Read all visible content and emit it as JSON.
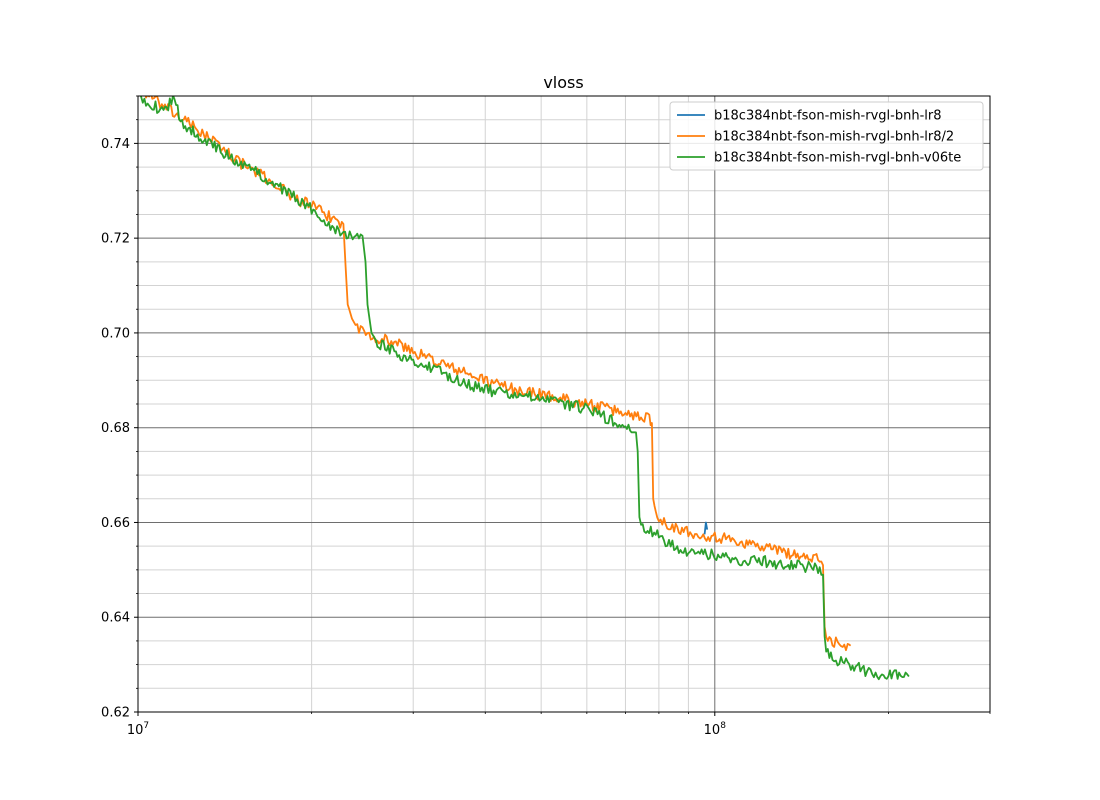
{
  "chart_data": {
    "type": "line",
    "title": "vloss",
    "xlabel": "",
    "ylabel": "",
    "xscale": "log",
    "xlim": [
      10000000,
      300000000
    ],
    "ylim": [
      0.62,
      0.75
    ],
    "grid": "major and minor",
    "legend_position": "top-right",
    "x_tick_labels": [
      {
        "value": 10000000,
        "base": "10",
        "exp": "7"
      },
      {
        "value": 100000000,
        "base": "10",
        "exp": "8"
      }
    ],
    "y_tick_labels": [
      {
        "value": 0.62,
        "label": "0.62"
      },
      {
        "value": 0.64,
        "label": "0.64"
      },
      {
        "value": 0.66,
        "label": "0.66"
      },
      {
        "value": 0.68,
        "label": "0.68"
      },
      {
        "value": 0.7,
        "label": "0.70"
      },
      {
        "value": 0.72,
        "label": "0.72"
      },
      {
        "value": 0.74,
        "label": "0.74"
      }
    ],
    "series": [
      {
        "name": "b18c384nbt-fson-mish-rvgl-bnh-lr8",
        "color": "#1f77b4",
        "points": [
          [
            96000000,
            0.6575
          ],
          [
            96500000,
            0.66
          ],
          [
            97000000,
            0.6585
          ]
        ]
      },
      {
        "name": "b18c384nbt-fson-mish-rvgl-bnh-lr8/2",
        "color": "#ff7f0e",
        "points": [
          [
            10000000,
            0.752
          ],
          [
            11000000,
            0.748
          ],
          [
            12000000,
            0.745
          ],
          [
            13000000,
            0.742
          ],
          [
            14000000,
            0.739
          ],
          [
            15000000,
            0.736
          ],
          [
            16000000,
            0.734
          ],
          [
            17000000,
            0.732
          ],
          [
            18000000,
            0.73
          ],
          [
            19000000,
            0.728
          ],
          [
            20000000,
            0.727
          ],
          [
            21000000,
            0.725
          ],
          [
            22000000,
            0.724
          ],
          [
            22700000,
            0.723
          ],
          [
            22900000,
            0.714
          ],
          [
            23100000,
            0.706
          ],
          [
            23500000,
            0.703
          ],
          [
            24000000,
            0.701
          ],
          [
            25000000,
            0.7
          ],
          [
            26000000,
            0.699
          ],
          [
            28000000,
            0.698
          ],
          [
            30000000,
            0.696
          ],
          [
            33000000,
            0.694
          ],
          [
            36000000,
            0.692
          ],
          [
            40000000,
            0.69
          ],
          [
            45000000,
            0.688
          ],
          [
            50000000,
            0.687
          ],
          [
            55000000,
            0.686
          ],
          [
            60000000,
            0.685
          ],
          [
            65000000,
            0.684
          ],
          [
            70000000,
            0.683
          ],
          [
            74000000,
            0.6825
          ],
          [
            77000000,
            0.682
          ],
          [
            77800000,
            0.681
          ],
          [
            78200000,
            0.665
          ],
          [
            79000000,
            0.662
          ],
          [
            80000000,
            0.661
          ],
          [
            85000000,
            0.659
          ],
          [
            90000000,
            0.658
          ],
          [
            100000000,
            0.657
          ],
          [
            110000000,
            0.656
          ],
          [
            120000000,
            0.655
          ],
          [
            130000000,
            0.654
          ],
          [
            140000000,
            0.653
          ],
          [
            152000000,
            0.652
          ],
          [
            154000000,
            0.651
          ],
          [
            155000000,
            0.638
          ],
          [
            156000000,
            0.636
          ],
          [
            160000000,
            0.635
          ],
          [
            170000000,
            0.634
          ],
          [
            172000000,
            0.634
          ]
        ]
      },
      {
        "name": "b18c384nbt-fson-mish-rvgl-bnh-v06te",
        "color": "#2ca02c",
        "points": [
          [
            10000000,
            0.75
          ],
          [
            11000000,
            0.747
          ],
          [
            11500000,
            0.749
          ],
          [
            12000000,
            0.744
          ],
          [
            13000000,
            0.741
          ],
          [
            14000000,
            0.738
          ],
          [
            15000000,
            0.736
          ],
          [
            16000000,
            0.734
          ],
          [
            17000000,
            0.732
          ],
          [
            18000000,
            0.73
          ],
          [
            19000000,
            0.728
          ],
          [
            20000000,
            0.726
          ],
          [
            21000000,
            0.724
          ],
          [
            22000000,
            0.722
          ],
          [
            23000000,
            0.721
          ],
          [
            24000000,
            0.72
          ],
          [
            24500000,
            0.7205
          ],
          [
            24800000,
            0.715
          ],
          [
            25000000,
            0.706
          ],
          [
            25400000,
            0.7
          ],
          [
            26000000,
            0.698
          ],
          [
            28000000,
            0.696
          ],
          [
            30000000,
            0.694
          ],
          [
            33000000,
            0.692
          ],
          [
            36000000,
            0.69
          ],
          [
            40000000,
            0.688
          ],
          [
            45000000,
            0.687
          ],
          [
            50000000,
            0.686
          ],
          [
            55000000,
            0.685
          ],
          [
            60000000,
            0.684
          ],
          [
            65000000,
            0.682
          ],
          [
            70000000,
            0.68
          ],
          [
            73000000,
            0.679
          ],
          [
            73500000,
            0.675
          ],
          [
            74000000,
            0.66
          ],
          [
            75000000,
            0.659
          ],
          [
            80000000,
            0.657
          ],
          [
            85000000,
            0.655
          ],
          [
            90000000,
            0.654
          ],
          [
            100000000,
            0.653
          ],
          [
            110000000,
            0.652
          ],
          [
            120000000,
            0.652
          ],
          [
            130000000,
            0.651
          ],
          [
            140000000,
            0.651
          ],
          [
            152000000,
            0.65
          ],
          [
            154000000,
            0.649
          ],
          [
            155000000,
            0.636
          ],
          [
            156000000,
            0.633
          ],
          [
            160000000,
            0.631
          ],
          [
            170000000,
            0.63
          ],
          [
            180000000,
            0.629
          ],
          [
            190000000,
            0.628
          ],
          [
            200000000,
            0.628
          ],
          [
            210000000,
            0.628
          ],
          [
            217000000,
            0.6275
          ]
        ]
      }
    ]
  }
}
